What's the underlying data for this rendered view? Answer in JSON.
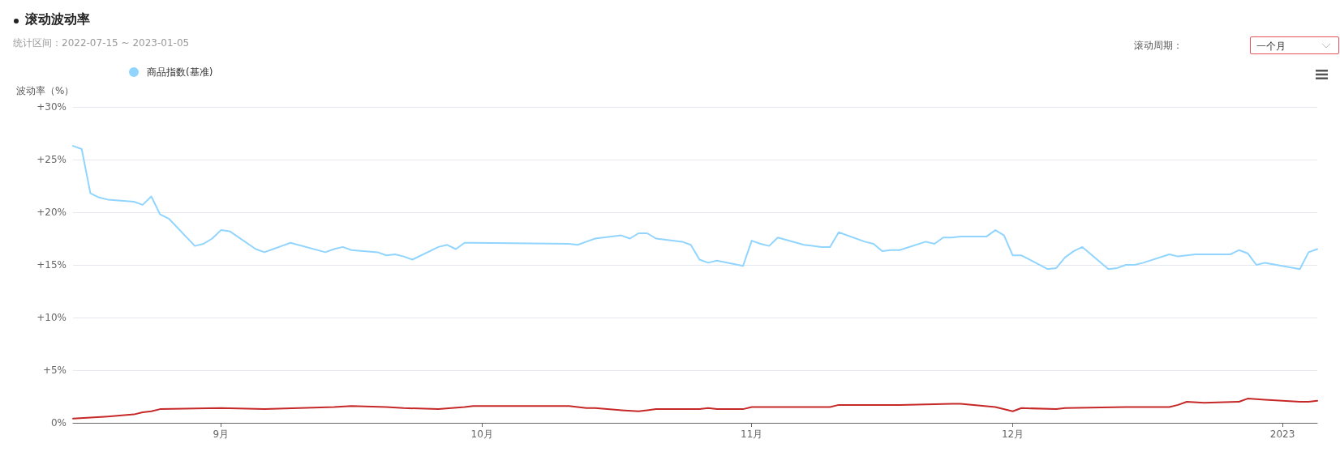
{
  "chart_data": {
    "type": "line",
    "title": "滚动波动率",
    "subtitle": "统计区间：2022-07-15 ~ 2023-01-05",
    "ylabel": "波动率（%）",
    "annotations": [
      "滚动周期：",
      "一个月"
    ],
    "xlim": [
      "2022-08-15",
      "2023-01-05"
    ],
    "xticks": [
      {
        "value": "2022-09-01",
        "label": "9月"
      },
      {
        "value": "2022-10-01",
        "label": "10月"
      },
      {
        "value": "2022-11-01",
        "label": "11月"
      },
      {
        "value": "2022-12-01",
        "label": "12月"
      },
      {
        "value": "2023-01-01",
        "label": "2023"
      }
    ],
    "ylim": [
      0,
      30
    ],
    "yticks": [
      {
        "value": 0,
        "label": "0%"
      },
      {
        "value": 5,
        "label": "+5%"
      },
      {
        "value": 10,
        "label": "+10%"
      },
      {
        "value": 15,
        "label": "+15%"
      },
      {
        "value": 20,
        "label": "+20%"
      },
      {
        "value": 25,
        "label": "+25%"
      },
      {
        "value": 30,
        "label": "+30%"
      }
    ],
    "grid": "y",
    "legend": "top left",
    "marker": "none",
    "line_style": "solid",
    "series": [
      {
        "color": "#c62828",
        "x": [
          "2022-08-15",
          "2022-08-19",
          "2022-08-22",
          "2022-08-23",
          "2022-08-24",
          "2022-08-25",
          "2022-09-01",
          "2022-09-06",
          "2022-09-14",
          "2022-09-16",
          "2022-09-20",
          "2022-09-22",
          "2022-09-26",
          "2022-09-29",
          "2022-09-30",
          "2022-10-11",
          "2022-10-13",
          "2022-10-14",
          "2022-10-17",
          "2022-10-19",
          "2022-10-20",
          "2022-10-21",
          "2022-10-24",
          "2022-10-26",
          "2022-10-27",
          "2022-10-28",
          "2022-10-31",
          "2022-11-01",
          "2022-11-04",
          "2022-11-10",
          "2022-11-11",
          "2022-11-16",
          "2022-11-18",
          "2022-11-24",
          "2022-11-25",
          "2022-11-29",
          "2022-12-01",
          "2022-12-02",
          "2022-12-06",
          "2022-12-07",
          "2022-12-14",
          "2022-12-19",
          "2022-12-20",
          "2022-12-21",
          "2022-12-23",
          "2022-12-27",
          "2022-12-28",
          "2022-12-30",
          "2023-01-03",
          "2023-01-04",
          "2023-01-05"
        ],
        "values": [
          0.4,
          0.6,
          0.8,
          1.0,
          1.1,
          1.3,
          1.4,
          1.3,
          1.5,
          1.6,
          1.5,
          1.4,
          1.3,
          1.5,
          1.6,
          1.6,
          1.4,
          1.4,
          1.2,
          1.1,
          1.2,
          1.3,
          1.3,
          1.3,
          1.4,
          1.3,
          1.3,
          1.5,
          1.5,
          1.5,
          1.7,
          1.7,
          1.7,
          1.8,
          1.8,
          1.5,
          1.1,
          1.4,
          1.3,
          1.4,
          1.5,
          1.5,
          1.7,
          2.0,
          1.9,
          2.0,
          2.3,
          2.2,
          2.0,
          2.0,
          2.1
        ]
      },
      {
        "name": "商品指数(基准)",
        "color": "#91d5ff",
        "x": [
          "2022-08-15",
          "2022-08-16",
          "2022-08-17",
          "2022-08-18",
          "2022-08-19",
          "2022-08-22",
          "2022-08-23",
          "2022-08-24",
          "2022-08-25",
          "2022-08-26",
          "2022-08-29",
          "2022-08-30",
          "2022-08-31",
          "2022-09-01",
          "2022-09-02",
          "2022-09-05",
          "2022-09-06",
          "2022-09-07",
          "2022-09-08",
          "2022-09-09",
          "2022-09-13",
          "2022-09-14",
          "2022-09-15",
          "2022-09-16",
          "2022-09-19",
          "2022-09-20",
          "2022-09-21",
          "2022-09-22",
          "2022-09-23",
          "2022-09-26",
          "2022-09-27",
          "2022-09-28",
          "2022-09-29",
          "2022-09-30",
          "2022-10-11",
          "2022-10-12",
          "2022-10-13",
          "2022-10-14",
          "2022-10-17",
          "2022-10-18",
          "2022-10-19",
          "2022-10-20",
          "2022-10-21",
          "2022-10-24",
          "2022-10-25",
          "2022-10-26",
          "2022-10-27",
          "2022-10-28",
          "2022-10-31",
          "2022-11-01",
          "2022-11-02",
          "2022-11-03",
          "2022-11-04",
          "2022-11-07",
          "2022-11-08",
          "2022-11-09",
          "2022-11-10",
          "2022-11-11",
          "2022-11-14",
          "2022-11-15",
          "2022-11-16",
          "2022-11-17",
          "2022-11-18",
          "2022-11-21",
          "2022-11-22",
          "2022-11-23",
          "2022-11-24",
          "2022-11-25",
          "2022-11-28",
          "2022-11-29",
          "2022-11-30",
          "2022-12-01",
          "2022-12-02",
          "2022-12-05",
          "2022-12-06",
          "2022-12-07",
          "2022-12-08",
          "2022-12-09",
          "2022-12-12",
          "2022-12-13",
          "2022-12-14",
          "2022-12-15",
          "2022-12-16",
          "2022-12-19",
          "2022-12-20",
          "2022-12-21",
          "2022-12-22",
          "2022-12-23",
          "2022-12-26",
          "2022-12-27",
          "2022-12-28",
          "2022-12-29",
          "2022-12-30",
          "2023-01-03",
          "2023-01-04",
          "2023-01-05"
        ],
        "values": [
          26.3,
          26.0,
          21.8,
          21.4,
          21.2,
          21.0,
          20.7,
          21.5,
          19.8,
          19.4,
          16.8,
          17.0,
          17.5,
          18.3,
          18.2,
          16.5,
          16.2,
          16.5,
          16.8,
          17.1,
          16.2,
          16.5,
          16.7,
          16.4,
          16.2,
          15.9,
          16.0,
          15.8,
          15.5,
          16.7,
          16.9,
          16.5,
          17.1,
          17.1,
          17.0,
          16.9,
          17.2,
          17.5,
          17.8,
          17.5,
          18.0,
          18.0,
          17.5,
          17.2,
          16.9,
          15.5,
          15.2,
          15.4,
          14.9,
          17.3,
          17.0,
          16.8,
          17.6,
          16.9,
          16.8,
          16.7,
          16.7,
          18.1,
          17.2,
          17.0,
          16.3,
          16.4,
          16.4,
          17.2,
          17.0,
          17.6,
          17.6,
          17.7,
          17.7,
          18.3,
          17.8,
          15.9,
          15.9,
          14.6,
          14.7,
          15.7,
          16.3,
          16.7,
          14.6,
          14.7,
          15.0,
          15.0,
          15.2,
          16.0,
          15.8,
          15.9,
          16.0,
          16.0,
          16.0,
          16.4,
          16.1,
          15.0,
          15.2,
          14.6,
          16.2,
          16.5
        ]
      }
    ]
  }
}
